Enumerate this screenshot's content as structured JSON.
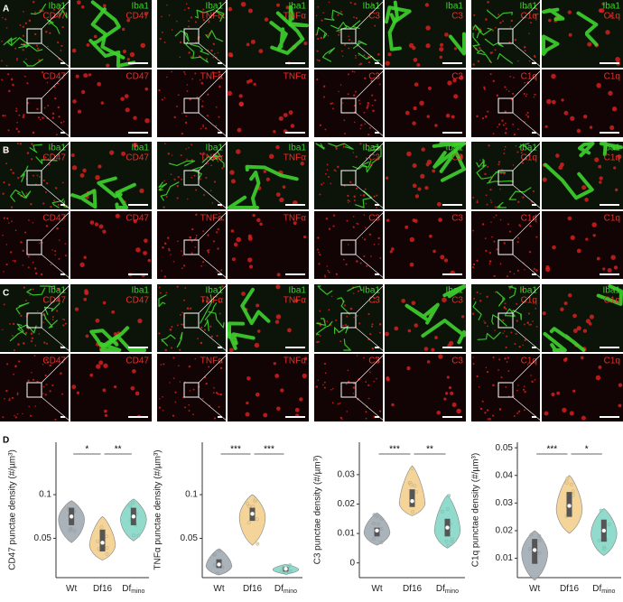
{
  "figure": {
    "panel_letters": [
      "A",
      "B",
      "C",
      "D"
    ],
    "stain": "Iba1",
    "markers": [
      "CD47",
      "TNFα",
      "C3",
      "C1q"
    ]
  },
  "chart_data": [
    {
      "type": "violin",
      "y_label": "CD47 punctae density (#/µm³)",
      "categories": [
        "Wt",
        "Df16",
        "Df"
      ],
      "category_subscripts": [
        null,
        null,
        "mino"
      ],
      "ylim": [
        0.005,
        0.16
      ],
      "yticks": [
        0.05,
        0.1
      ],
      "significance": [
        "*",
        "**"
      ],
      "series": [
        {
          "name": "Wt",
          "color": "#a3abb3",
          "values": 0.075,
          "q1": 0.065,
          "q3": 0.085,
          "min": 0.045,
          "max": 0.093
        },
        {
          "name": "Df16",
          "color": "#f3d08d",
          "values": 0.045,
          "q1": 0.035,
          "q3": 0.06,
          "min": 0.025,
          "max": 0.075
        },
        {
          "name": "Dfmino",
          "color": "#86d8c7",
          "values": 0.075,
          "q1": 0.065,
          "q3": 0.085,
          "min": 0.047,
          "max": 0.095
        }
      ]
    },
    {
      "type": "violin",
      "y_label": "TNFα punctae density (#/µm³)",
      "categories": [
        "Wt",
        "Df16",
        "Df"
      ],
      "category_subscripts": [
        null,
        null,
        "mino"
      ],
      "ylim": [
        0.005,
        0.16
      ],
      "yticks": [
        0.05,
        0.1
      ],
      "significance": [
        "***",
        "***"
      ],
      "series": [
        {
          "name": "Wt",
          "color": "#a3abb3",
          "values": 0.02,
          "q1": 0.016,
          "q3": 0.026,
          "min": 0.008,
          "max": 0.038
        },
        {
          "name": "Df16",
          "color": "#f3d08d",
          "values": 0.078,
          "q1": 0.07,
          "q3": 0.085,
          "min": 0.042,
          "max": 0.1
        },
        {
          "name": "Dfmino",
          "color": "#86d8c7",
          "values": 0.015,
          "q1": 0.012,
          "q3": 0.017,
          "min": 0.009,
          "max": 0.02
        }
      ]
    },
    {
      "type": "violin",
      "y_label": "C3 punctae density (#/µm³)",
      "categories": [
        "Wt",
        "Df16",
        "Df"
      ],
      "category_subscripts": [
        null,
        null,
        "mino"
      ],
      "ylim": [
        -0.005,
        0.041
      ],
      "yticks": [
        0,
        0.01,
        0.02,
        0.03
      ],
      "significance": [
        "***",
        "**"
      ],
      "series": [
        {
          "name": "Wt",
          "color": "#a3abb3",
          "values": 0.011,
          "q1": 0.009,
          "q3": 0.012,
          "min": 0.006,
          "max": 0.017
        },
        {
          "name": "Df16",
          "color": "#f3d08d",
          "values": 0.021,
          "q1": 0.019,
          "q3": 0.025,
          "min": 0.016,
          "max": 0.033
        },
        {
          "name": "Dfmino",
          "color": "#86d8c7",
          "values": 0.012,
          "q1": 0.009,
          "q3": 0.015,
          "min": 0.005,
          "max": 0.023
        }
      ]
    },
    {
      "type": "violin",
      "y_label": "C1q punctae density (#/µm³)",
      "categories": [
        "Wt",
        "Df16",
        "Df"
      ],
      "category_subscripts": [
        null,
        null,
        "mino"
      ],
      "ylim": [
        0.003,
        0.052
      ],
      "yticks": [
        0.01,
        0.02,
        0.03,
        0.04,
        0.05
      ],
      "significance": [
        "***",
        "*"
      ],
      "series": [
        {
          "name": "Wt",
          "color": "#a3abb3",
          "values": 0.013,
          "q1": 0.008,
          "q3": 0.017,
          "min": 0.002,
          "max": 0.02
        },
        {
          "name": "Df16",
          "color": "#f3d08d",
          "values": 0.029,
          "q1": 0.025,
          "q3": 0.034,
          "min": 0.019,
          "max": 0.04
        },
        {
          "name": "Dfmino",
          "color": "#86d8c7",
          "values": 0.02,
          "q1": 0.016,
          "q3": 0.024,
          "min": 0.011,
          "max": 0.028
        }
      ]
    }
  ]
}
